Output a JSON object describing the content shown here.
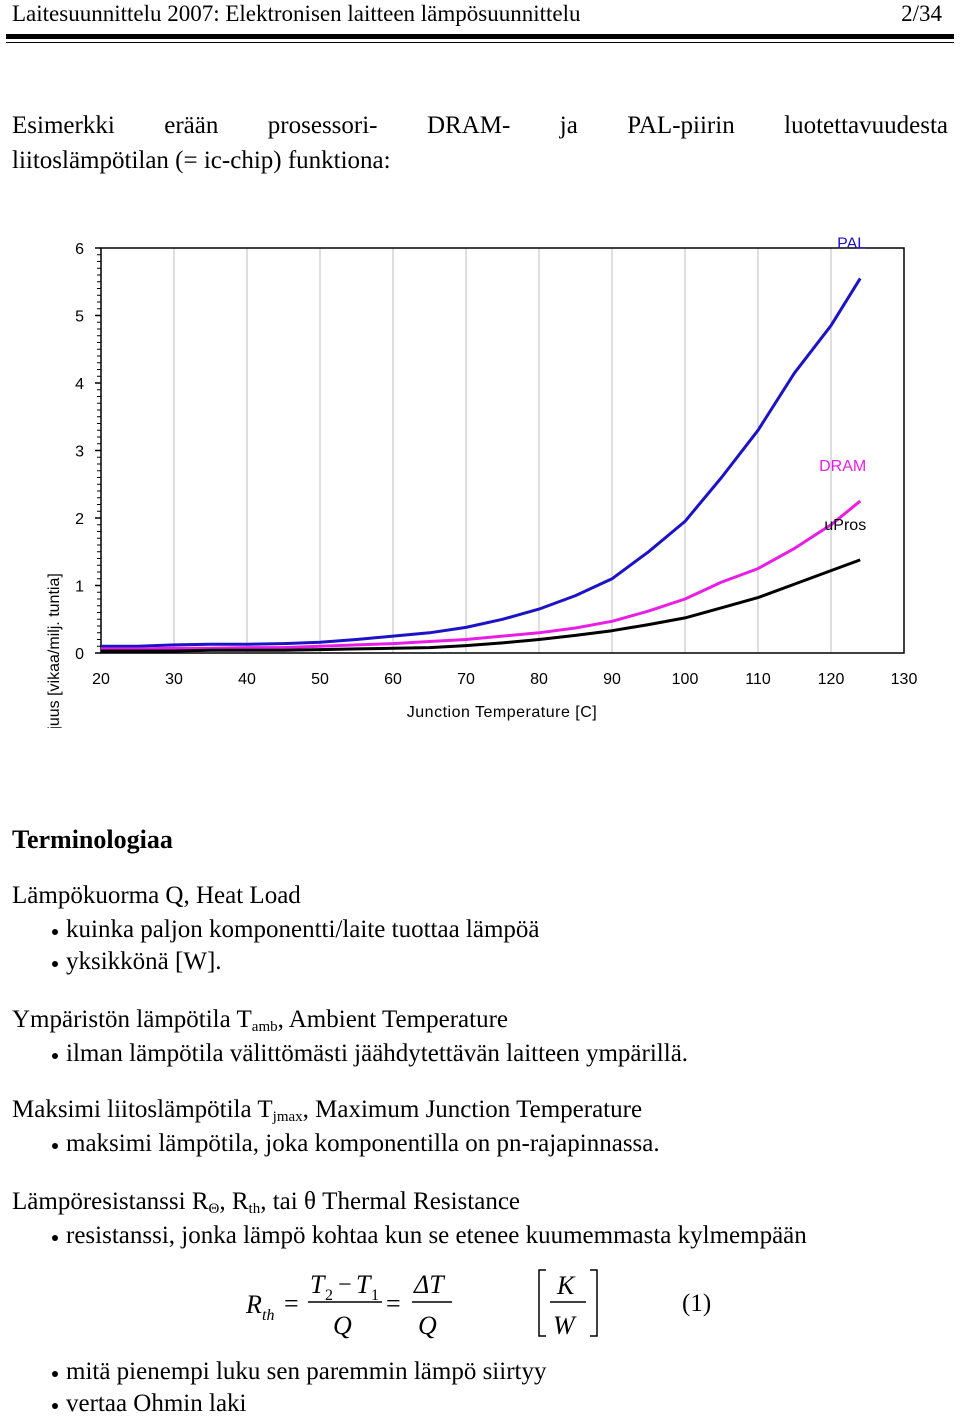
{
  "header": {
    "title": "Laitesuunnittelu 2007: Elektronisen laitteen lämpösuunnittelu",
    "page": "2/34"
  },
  "intro": {
    "words": [
      "Esimerkki",
      "erään",
      "prosessori-",
      "DRAM-",
      "ja",
      "PAL-piirin",
      "luotettavuudesta"
    ],
    "line2": "liitoslämpötilan (= ic-chip) funktiona:"
  },
  "chart_data": {
    "type": "line",
    "xlabel": "Junction Temperature [C]",
    "ylabel": "Vikataajuus [vikaa/milj. tuntia]",
    "xlim": [
      20,
      130
    ],
    "ylim": [
      0,
      6
    ],
    "x_ticks": [
      "20",
      "30",
      "40",
      "50",
      "60",
      "70",
      "80",
      "90",
      "100",
      "110",
      "120",
      "130"
    ],
    "y_ticks": [
      "0",
      "1",
      "2",
      "3",
      "4",
      "5",
      "6"
    ],
    "grid": "vertical",
    "series": [
      {
        "name": "PAL",
        "color": "#1c12c6",
        "x": [
          20,
          25,
          30,
          35,
          40,
          45,
          50,
          55,
          60,
          65,
          70,
          75,
          80,
          85,
          90,
          95,
          100,
          105,
          110,
          115,
          120,
          124
        ],
        "y": [
          0.1,
          0.1,
          0.12,
          0.13,
          0.13,
          0.14,
          0.16,
          0.2,
          0.25,
          0.3,
          0.38,
          0.5,
          0.65,
          0.85,
          1.1,
          1.5,
          1.95,
          2.6,
          3.3,
          4.15,
          4.85,
          5.55
        ]
      },
      {
        "name": "DRAM",
        "color": "#e81ee6",
        "x": [
          20,
          25,
          30,
          35,
          40,
          45,
          50,
          55,
          60,
          65,
          70,
          75,
          80,
          85,
          90,
          95,
          100,
          105,
          110,
          115,
          120,
          124
        ],
        "y": [
          0.06,
          0.06,
          0.07,
          0.07,
          0.08,
          0.08,
          0.1,
          0.12,
          0.14,
          0.17,
          0.2,
          0.25,
          0.3,
          0.37,
          0.47,
          0.62,
          0.8,
          1.05,
          1.25,
          1.55,
          1.9,
          2.25
        ]
      },
      {
        "name": "uPros",
        "color": "#000000",
        "x": [
          20,
          25,
          30,
          35,
          40,
          45,
          50,
          55,
          60,
          65,
          70,
          75,
          80,
          85,
          90,
          95,
          100,
          105,
          110,
          115,
          120,
          124
        ],
        "y": [
          0.03,
          0.03,
          0.03,
          0.04,
          0.04,
          0.04,
          0.05,
          0.06,
          0.07,
          0.08,
          0.11,
          0.15,
          0.2,
          0.26,
          0.33,
          0.42,
          0.52,
          0.67,
          0.82,
          1.02,
          1.22,
          1.38
        ]
      }
    ]
  },
  "terminology": {
    "heading": "Terminologiaa",
    "heat_load": {
      "title": "Lämpökuorma Q, Heat Load",
      "bullets": [
        "kuinka paljon komponentti/laite tuottaa lämpöä",
        "yksikkönä [W]."
      ]
    },
    "ambient": {
      "prefix": "Ympäristön lämpötila T",
      "sub": "amb",
      "suffix": ", Ambient Temperature",
      "bullets": [
        "ilman lämpötila välittömästi jäähdytettävän laitteen ympärillä."
      ]
    },
    "junction": {
      "prefix": "Maksimi liitoslämpötila T",
      "sub": "jmax",
      "suffix": ", Maximum Junction Temperature",
      "bullets": [
        "maksimi lämpötila, joka komponentilla on pn-rajapinnassa."
      ]
    },
    "thermal": {
      "prefix": "Lämpöresistanssi R",
      "sub1": "Θ",
      "mid": ", R",
      "sub2": "th",
      "suffix": ", tai θ Thermal Resistance",
      "bullets": [
        "resistanssi, jonka lämpö kohtaa kun se etenee kuumemmasta kylmempään"
      ],
      "bullets_after": [
        "mitä pienempi luku sen paremmin lämpö siirtyy",
        "vertaa Ohmin laki"
      ]
    }
  },
  "formula": {
    "R": "R",
    "th": "th",
    "eq": "=",
    "T2": "T",
    "two": "2",
    "minus": "−",
    "T1": "T",
    "one": "1",
    "Q": "Q",
    "dT": "ΔT",
    "K": "K",
    "W": "W",
    "number": "(1)"
  }
}
